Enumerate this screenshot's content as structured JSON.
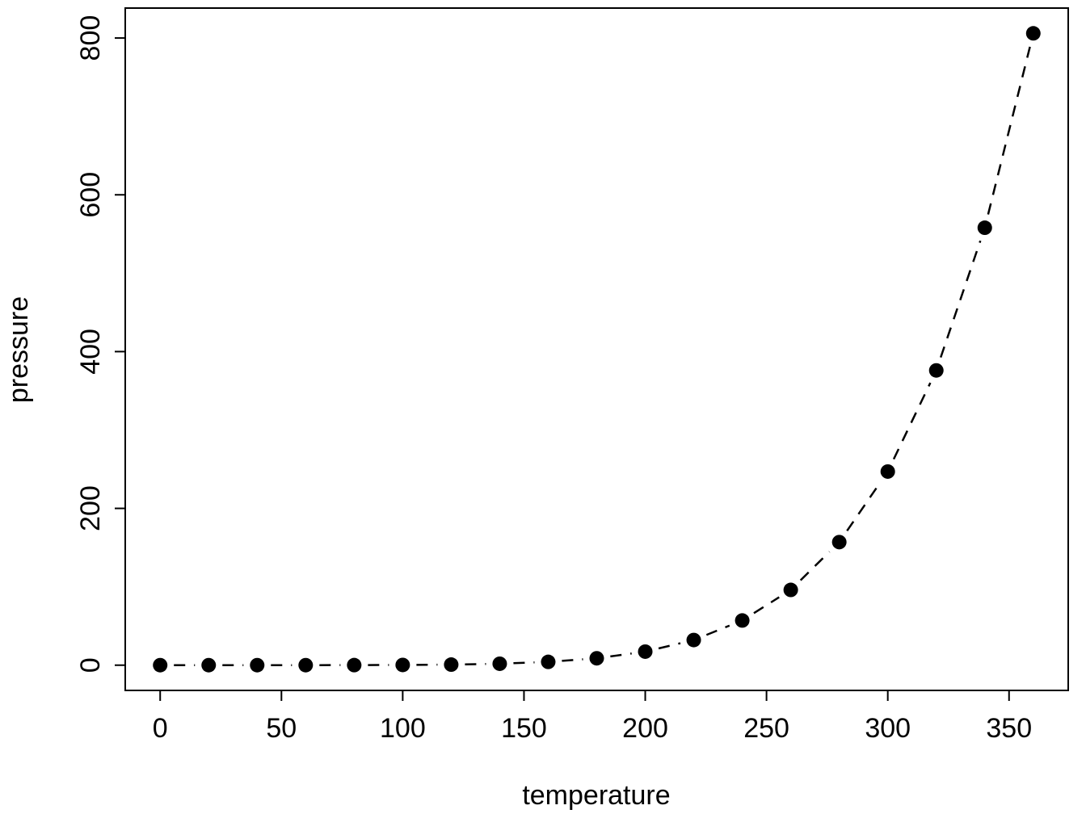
{
  "figure": {
    "background": "#ffffff",
    "foreground": "#000000"
  },
  "chart_data": {
    "type": "scatter",
    "title": "",
    "xlabel": "temperature",
    "ylabel": "pressure",
    "x": [
      0,
      20,
      40,
      60,
      80,
      100,
      120,
      140,
      160,
      180,
      200,
      220,
      240,
      260,
      280,
      300,
      320,
      340,
      360
    ],
    "y": [
      0.0002,
      0.0012,
      0.006,
      0.03,
      0.09,
      0.27,
      0.75,
      1.85,
      4.2,
      8.8,
      17.3,
      32.1,
      57.0,
      96.0,
      157.0,
      247.0,
      376.0,
      558.0,
      806.0
    ],
    "x_ticks": [
      0,
      50,
      100,
      150,
      200,
      250,
      300,
      350
    ],
    "y_ticks": [
      0,
      200,
      400,
      600,
      800
    ],
    "xlim": [
      -14.4,
      374.4
    ],
    "ylim": [
      -32.2,
      838.2
    ],
    "grid": false,
    "legend": "none",
    "marker": "filled-circle",
    "marker_color": "#000000",
    "line_style": "dashed",
    "line_color": "#000000"
  }
}
